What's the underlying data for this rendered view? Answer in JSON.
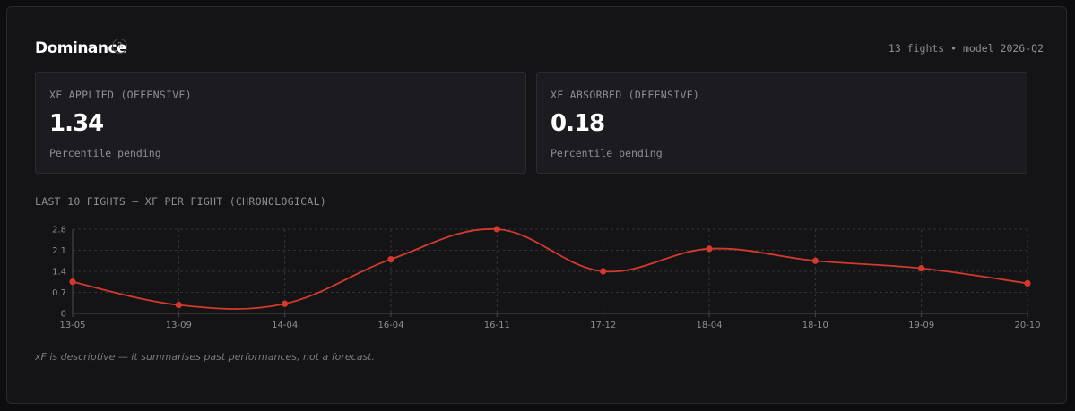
{
  "header": {
    "title": "Dominance",
    "help": "?",
    "meta": "13 fights • model 2026-Q2"
  },
  "cards": [
    {
      "label": "XF APPLIED (OFFENSIVE)",
      "value": "1.34",
      "sub": "Percentile pending"
    },
    {
      "label": "XF ABSORBED (DEFENSIVE)",
      "value": "0.18",
      "sub": "Percentile pending"
    }
  ],
  "footer_note": "xF is descriptive — it summarises past performances, not a forecast.",
  "colors": {
    "series": "#d23a2e",
    "grid": "#33333a",
    "axis": "#4a4a50"
  },
  "chart_data": {
    "type": "line",
    "title": "LAST 10 FIGHTS — XF PER FIGHT (CHRONOLOGICAL)",
    "categories": [
      "13-05",
      "13-09",
      "14-04",
      "16-04",
      "16-11",
      "17-12",
      "18-04",
      "18-10",
      "19-09",
      "20-10"
    ],
    "values": [
      1.05,
      0.28,
      0.32,
      1.8,
      2.8,
      1.4,
      2.15,
      1.75,
      1.5,
      1.0
    ],
    "yticks": [
      "2.8",
      "2.1",
      "1.4",
      "0.7",
      "0"
    ],
    "ylim": [
      0,
      2.8
    ],
    "grid": true,
    "smooth": true
  }
}
